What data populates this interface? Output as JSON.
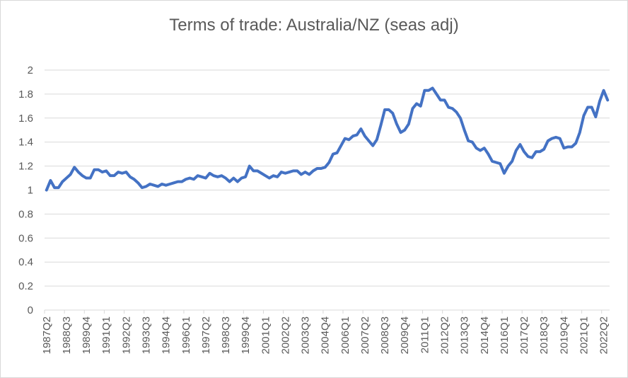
{
  "chart_data": {
    "type": "line",
    "title": "Terms of trade: Australia/NZ (seas adj)",
    "xlabel": "",
    "ylabel": "",
    "ylim": [
      0,
      2
    ],
    "y_ticks": [
      "0",
      "0.2",
      "0.4",
      "0.6",
      "0.8",
      "1",
      "1.2",
      "1.4",
      "1.6",
      "1.8",
      "2"
    ],
    "x_tick_labels": [
      "1987Q2",
      "1988Q3",
      "1989Q4",
      "1991Q1",
      "1992Q2",
      "1993Q3",
      "1994Q4",
      "1996Q1",
      "1997Q2",
      "1998Q3",
      "1999Q4",
      "2001Q1",
      "2002Q2",
      "2003Q3",
      "2004Q4",
      "2006Q1",
      "2007Q2",
      "2008Q3",
      "2009Q4",
      "2011Q1",
      "2012Q2",
      "2013Q3",
      "2014Q4",
      "2016Q1",
      "2017Q2",
      "2018Q3",
      "2019Q4",
      "2021Q1",
      "2022Q2"
    ],
    "x_start": "1987Q2",
    "grid": true,
    "legend": "none",
    "line_color": "#4472C4",
    "series": [
      {
        "values": [
          1.0,
          1.08,
          1.02,
          1.02,
          1.07,
          1.1,
          1.13,
          1.19,
          1.15,
          1.12,
          1.1,
          1.1,
          1.17,
          1.17,
          1.15,
          1.16,
          1.12,
          1.12,
          1.15,
          1.14,
          1.15,
          1.11,
          1.09,
          1.06,
          1.02,
          1.03,
          1.05,
          1.04,
          1.03,
          1.05,
          1.04,
          1.05,
          1.06,
          1.07,
          1.07,
          1.09,
          1.1,
          1.09,
          1.12,
          1.11,
          1.1,
          1.14,
          1.12,
          1.11,
          1.12,
          1.1,
          1.07,
          1.1,
          1.07,
          1.1,
          1.11,
          1.2,
          1.16,
          1.16,
          1.14,
          1.12,
          1.1,
          1.12,
          1.11,
          1.15,
          1.14,
          1.15,
          1.16,
          1.16,
          1.13,
          1.15,
          1.13,
          1.16,
          1.18,
          1.18,
          1.19,
          1.23,
          1.3,
          1.31,
          1.37,
          1.43,
          1.42,
          1.45,
          1.46,
          1.51,
          1.45,
          1.41,
          1.37,
          1.42,
          1.54,
          1.67,
          1.67,
          1.64,
          1.55,
          1.48,
          1.5,
          1.55,
          1.68,
          1.72,
          1.7,
          1.83,
          1.83,
          1.85,
          1.8,
          1.75,
          1.75,
          1.69,
          1.68,
          1.65,
          1.6,
          1.5,
          1.41,
          1.4,
          1.35,
          1.33,
          1.35,
          1.3,
          1.24,
          1.23,
          1.22,
          1.14,
          1.2,
          1.24,
          1.33,
          1.38,
          1.32,
          1.28,
          1.27,
          1.32,
          1.32,
          1.34,
          1.41,
          1.43,
          1.44,
          1.43,
          1.35,
          1.36,
          1.36,
          1.39,
          1.48,
          1.62,
          1.69,
          1.69,
          1.61,
          1.74,
          1.83,
          1.75
        ]
      }
    ]
  }
}
